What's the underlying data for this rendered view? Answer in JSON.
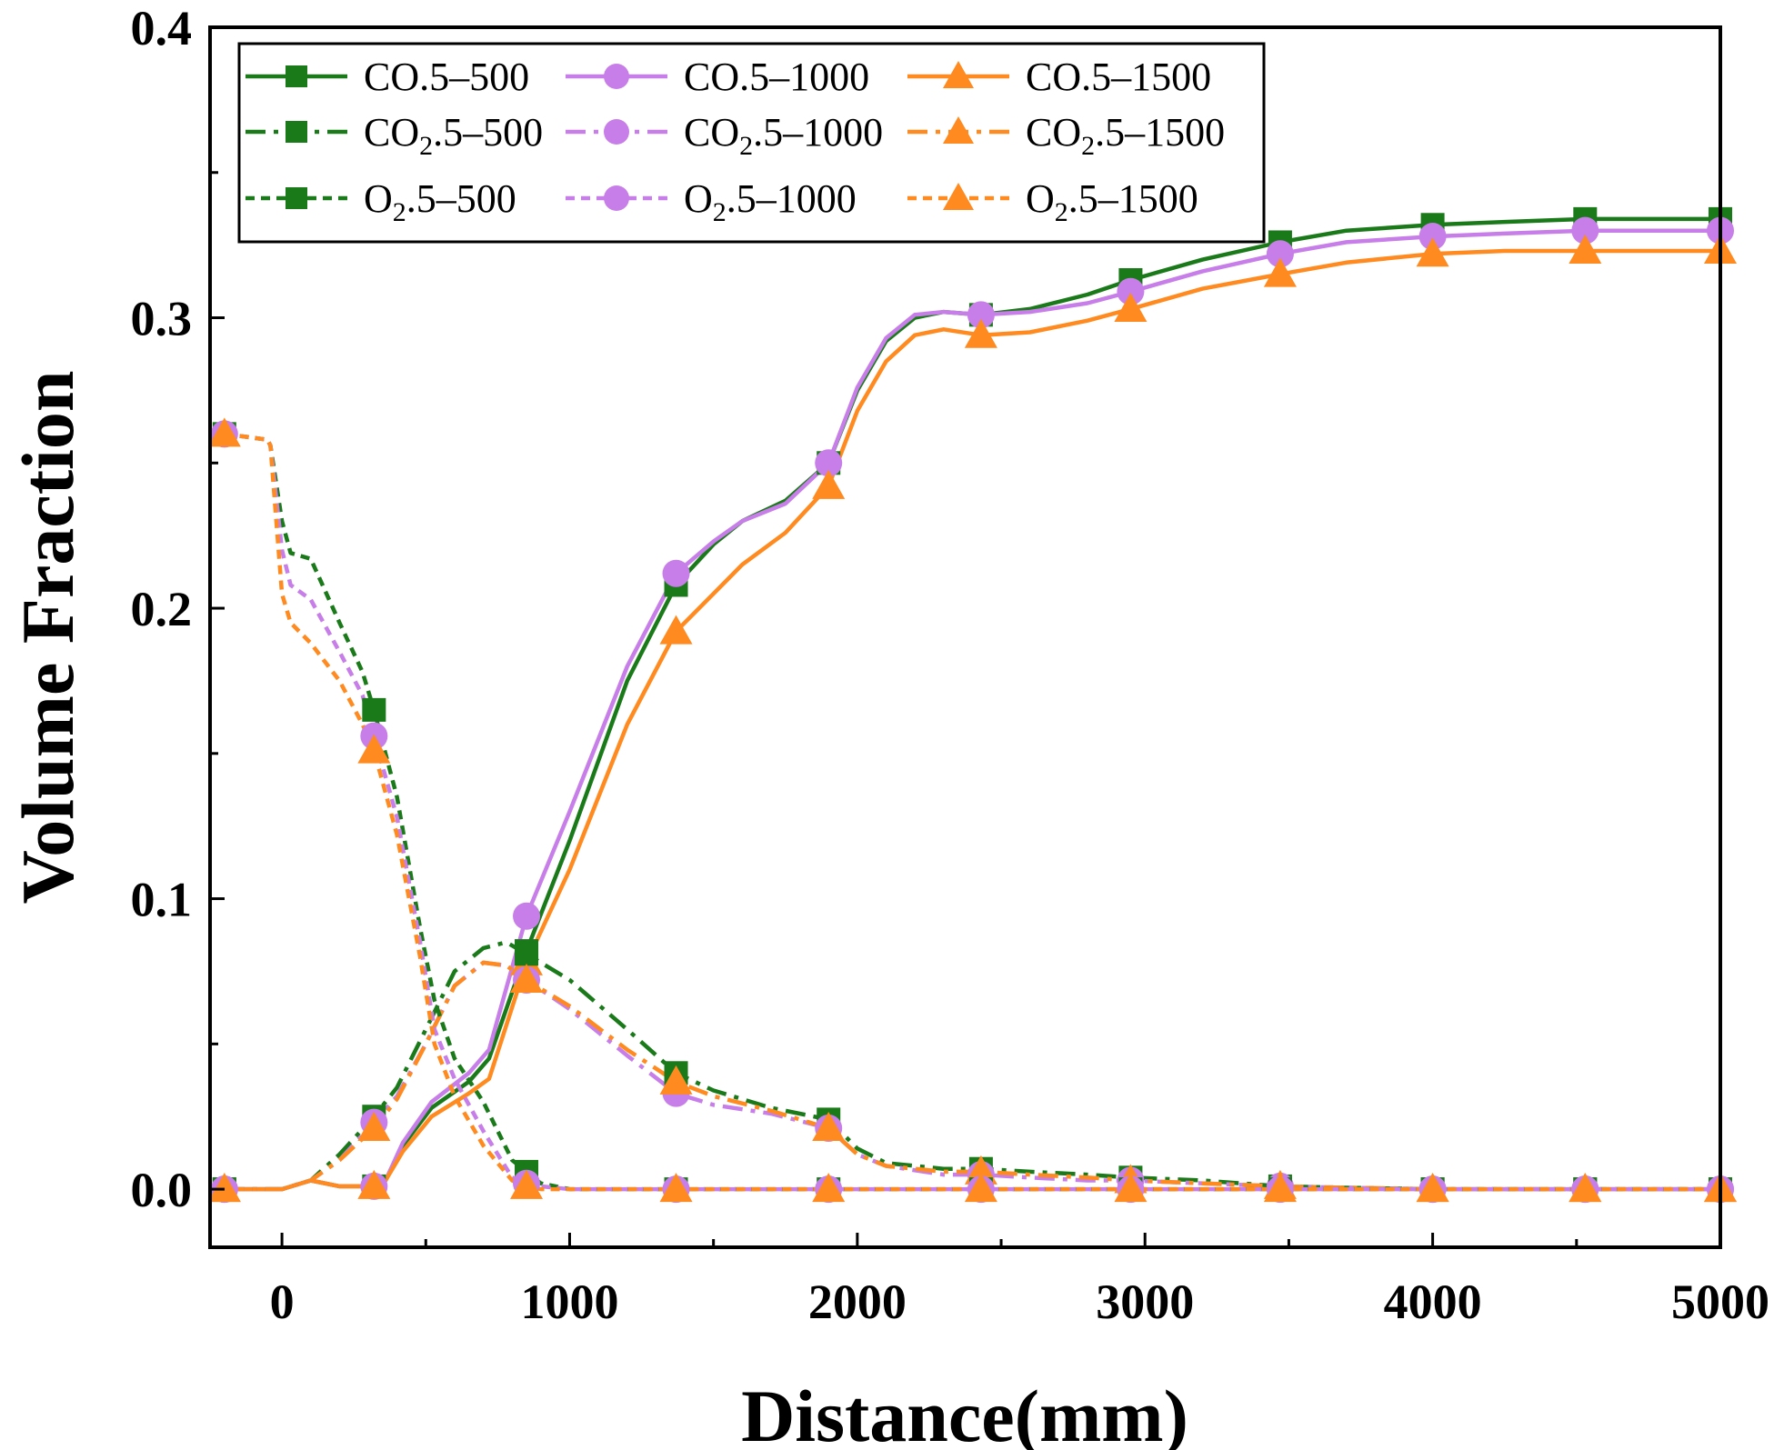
{
  "chart_data": {
    "type": "line",
    "title": "",
    "xlabel": "Distance(mm)",
    "ylabel": "Volume Fraction",
    "xlim": [
      -250,
      5000
    ],
    "ylim": [
      -0.02,
      0.4
    ],
    "xticks": [
      0,
      1000,
      2000,
      3000,
      4000,
      5000
    ],
    "xtick_labels": [
      "0",
      "1000",
      "2000",
      "3000",
      "4000",
      "5000"
    ],
    "yticks": [
      0.0,
      0.1,
      0.2,
      0.3,
      0.4
    ],
    "ytick_labels": [
      "0.0",
      "0.1",
      "0.2",
      "0.3",
      "0.4"
    ],
    "grid": false,
    "legend_position": "top-left",
    "colors": {
      "500": "#1a7a1a",
      "1000": "#c77ee8",
      "1500": "#ff8a1f"
    },
    "series": [
      {
        "name": "CO.5–500",
        "species": "CO",
        "subscript": "",
        "case": "5–500",
        "color_key": "500",
        "linestyle": "solid",
        "marker": "square",
        "points": [
          [
            -200,
            0
          ],
          [
            0,
            0
          ],
          [
            100,
            0.003
          ],
          [
            200,
            0.001
          ],
          [
            320,
            0.001
          ],
          [
            360,
            0.003
          ],
          [
            420,
            0.015
          ],
          [
            520,
            0.028
          ],
          [
            650,
            0.037
          ],
          [
            720,
            0.045
          ],
          [
            850,
            0.082
          ],
          [
            1000,
            0.12
          ],
          [
            1200,
            0.175
          ],
          [
            1370,
            0.208
          ],
          [
            1500,
            0.222
          ],
          [
            1600,
            0.23
          ],
          [
            1750,
            0.237
          ],
          [
            1900,
            0.25
          ],
          [
            2000,
            0.275
          ],
          [
            2100,
            0.292
          ],
          [
            2200,
            0.3
          ],
          [
            2300,
            0.302
          ],
          [
            2430,
            0.301
          ],
          [
            2600,
            0.303
          ],
          [
            2800,
            0.308
          ],
          [
            2950,
            0.313
          ],
          [
            3200,
            0.32
          ],
          [
            3470,
            0.326
          ],
          [
            3700,
            0.33
          ],
          [
            4000,
            0.332
          ],
          [
            4250,
            0.333
          ],
          [
            4530,
            0.334
          ],
          [
            4800,
            0.334
          ],
          [
            5000,
            0.334
          ]
        ],
        "marker_x": [
          -200,
          320,
          850,
          1370,
          1900,
          2430,
          2950,
          3470,
          4000,
          4530,
          5000
        ]
      },
      {
        "name": "CO.5–1000",
        "species": "CO",
        "subscript": "",
        "case": "5–1000",
        "color_key": "1000",
        "linestyle": "solid",
        "marker": "circle",
        "points": [
          [
            -200,
            0
          ],
          [
            0,
            0
          ],
          [
            100,
            0.003
          ],
          [
            200,
            0.001
          ],
          [
            320,
            0.001
          ],
          [
            360,
            0.003
          ],
          [
            420,
            0.016
          ],
          [
            520,
            0.03
          ],
          [
            650,
            0.04
          ],
          [
            720,
            0.048
          ],
          [
            850,
            0.094
          ],
          [
            1000,
            0.13
          ],
          [
            1200,
            0.18
          ],
          [
            1370,
            0.212
          ],
          [
            1500,
            0.223
          ],
          [
            1600,
            0.23
          ],
          [
            1750,
            0.236
          ],
          [
            1900,
            0.25
          ],
          [
            2000,
            0.276
          ],
          [
            2100,
            0.293
          ],
          [
            2200,
            0.301
          ],
          [
            2300,
            0.302
          ],
          [
            2430,
            0.301
          ],
          [
            2600,
            0.302
          ],
          [
            2800,
            0.305
          ],
          [
            2950,
            0.309
          ],
          [
            3200,
            0.316
          ],
          [
            3470,
            0.322
          ],
          [
            3700,
            0.326
          ],
          [
            4000,
            0.328
          ],
          [
            4250,
            0.329
          ],
          [
            4530,
            0.33
          ],
          [
            4800,
            0.33
          ],
          [
            5000,
            0.33
          ]
        ],
        "marker_x": [
          -200,
          320,
          850,
          1370,
          1900,
          2430,
          2950,
          3470,
          4000,
          4530,
          5000
        ]
      },
      {
        "name": "CO.5–1500",
        "species": "CO",
        "subscript": "",
        "case": "5–1500",
        "color_key": "1500",
        "linestyle": "solid",
        "marker": "triangle",
        "points": [
          [
            -200,
            0
          ],
          [
            0,
            0
          ],
          [
            100,
            0.003
          ],
          [
            200,
            0.001
          ],
          [
            320,
            0.001
          ],
          [
            360,
            0.003
          ],
          [
            420,
            0.013
          ],
          [
            520,
            0.025
          ],
          [
            650,
            0.033
          ],
          [
            720,
            0.038
          ],
          [
            850,
            0.078
          ],
          [
            1000,
            0.11
          ],
          [
            1200,
            0.16
          ],
          [
            1370,
            0.192
          ],
          [
            1500,
            0.205
          ],
          [
            1600,
            0.215
          ],
          [
            1750,
            0.226
          ],
          [
            1900,
            0.242
          ],
          [
            2000,
            0.268
          ],
          [
            2100,
            0.285
          ],
          [
            2200,
            0.294
          ],
          [
            2300,
            0.296
          ],
          [
            2430,
            0.294
          ],
          [
            2600,
            0.295
          ],
          [
            2800,
            0.299
          ],
          [
            2950,
            0.303
          ],
          [
            3200,
            0.31
          ],
          [
            3470,
            0.315
          ],
          [
            3700,
            0.319
          ],
          [
            4000,
            0.322
          ],
          [
            4250,
            0.323
          ],
          [
            4530,
            0.323
          ],
          [
            4800,
            0.323
          ],
          [
            5000,
            0.323
          ]
        ],
        "marker_x": [
          -200,
          320,
          850,
          1370,
          1900,
          2430,
          2950,
          3470,
          4000,
          4530,
          5000
        ]
      },
      {
        "name": "CO2.5–500",
        "species": "CO",
        "subscript": "2",
        "case": "5–500",
        "color_key": "500",
        "linestyle": "dashdot",
        "marker": "square",
        "points": [
          [
            -200,
            0
          ],
          [
            0,
            0
          ],
          [
            100,
            0.003
          ],
          [
            200,
            0.012
          ],
          [
            320,
            0.025
          ],
          [
            400,
            0.035
          ],
          [
            500,
            0.055
          ],
          [
            600,
            0.075
          ],
          [
            700,
            0.083
          ],
          [
            780,
            0.085
          ],
          [
            850,
            0.081
          ],
          [
            1000,
            0.072
          ],
          [
            1200,
            0.055
          ],
          [
            1370,
            0.04
          ],
          [
            1500,
            0.034
          ],
          [
            1700,
            0.028
          ],
          [
            1900,
            0.024
          ],
          [
            2000,
            0.014
          ],
          [
            2100,
            0.009
          ],
          [
            2300,
            0.007
          ],
          [
            2430,
            0.007
          ],
          [
            2600,
            0.006
          ],
          [
            2800,
            0.005
          ],
          [
            2950,
            0.004
          ],
          [
            3200,
            0.003
          ],
          [
            3470,
            0.001
          ],
          [
            3700,
            0.0005
          ],
          [
            4000,
            0
          ],
          [
            5000,
            0
          ]
        ],
        "marker_x": [
          -200,
          320,
          850,
          1370,
          1900,
          2430,
          2950,
          3470,
          4000,
          4530,
          5000
        ]
      },
      {
        "name": "CO2.5–1000",
        "species": "CO",
        "subscript": "2",
        "case": "5–1000",
        "color_key": "1000",
        "linestyle": "dashdot",
        "marker": "circle",
        "points": [
          [
            -200,
            0
          ],
          [
            0,
            0
          ],
          [
            100,
            0.003
          ],
          [
            200,
            0.01
          ],
          [
            320,
            0.023
          ],
          [
            400,
            0.032
          ],
          [
            500,
            0.05
          ],
          [
            600,
            0.07
          ],
          [
            700,
            0.078
          ],
          [
            780,
            0.077
          ],
          [
            850,
            0.072
          ],
          [
            1000,
            0.062
          ],
          [
            1200,
            0.046
          ],
          [
            1370,
            0.033
          ],
          [
            1500,
            0.029
          ],
          [
            1700,
            0.026
          ],
          [
            1900,
            0.021
          ],
          [
            2000,
            0.012
          ],
          [
            2100,
            0.008
          ],
          [
            2300,
            0.005
          ],
          [
            2430,
            0.005
          ],
          [
            2600,
            0.004
          ],
          [
            2800,
            0.003
          ],
          [
            2950,
            0.003
          ],
          [
            3200,
            0.002
          ],
          [
            3470,
            0.001
          ],
          [
            3700,
            0.0005
          ],
          [
            4000,
            0
          ],
          [
            5000,
            0
          ]
        ],
        "marker_x": [
          -200,
          320,
          850,
          1370,
          1900,
          2430,
          2950,
          3470,
          4000,
          4530,
          5000
        ]
      },
      {
        "name": "CO2.5–1500",
        "species": "CO",
        "subscript": "2",
        "case": "5–1500",
        "color_key": "1500",
        "linestyle": "dashdot",
        "marker": "triangle",
        "points": [
          [
            -200,
            0
          ],
          [
            0,
            0
          ],
          [
            100,
            0.003
          ],
          [
            200,
            0.01
          ],
          [
            320,
            0.021
          ],
          [
            400,
            0.031
          ],
          [
            500,
            0.05
          ],
          [
            600,
            0.07
          ],
          [
            700,
            0.078
          ],
          [
            780,
            0.077
          ],
          [
            850,
            0.072
          ],
          [
            1000,
            0.063
          ],
          [
            1200,
            0.048
          ],
          [
            1370,
            0.037
          ],
          [
            1500,
            0.032
          ],
          [
            1700,
            0.027
          ],
          [
            1900,
            0.021
          ],
          [
            2000,
            0.012
          ],
          [
            2100,
            0.008
          ],
          [
            2300,
            0.006
          ],
          [
            2430,
            0.006
          ],
          [
            2600,
            0.005
          ],
          [
            2800,
            0.004
          ],
          [
            2950,
            0.003
          ],
          [
            3200,
            0.002
          ],
          [
            3470,
            0.001
          ],
          [
            3700,
            0.0005
          ],
          [
            4000,
            0
          ],
          [
            5000,
            0
          ]
        ],
        "marker_x": [
          -200,
          320,
          850,
          1370,
          1900,
          2430,
          2950,
          3470,
          4000,
          4530,
          5000
        ]
      },
      {
        "name": "O2.5–500",
        "species": "O",
        "subscript": "2",
        "case": "5–500",
        "color_key": "500",
        "linestyle": "dashed",
        "marker": "square",
        "points": [
          [
            -200,
            0.26
          ],
          [
            -50,
            0.258
          ],
          [
            -40,
            0.256
          ],
          [
            0,
            0.23
          ],
          [
            30,
            0.219
          ],
          [
            100,
            0.217
          ],
          [
            200,
            0.195
          ],
          [
            280,
            0.178
          ],
          [
            320,
            0.165
          ],
          [
            400,
            0.135
          ],
          [
            480,
            0.09
          ],
          [
            530,
            0.065
          ],
          [
            600,
            0.045
          ],
          [
            700,
            0.03
          ],
          [
            800,
            0.01
          ],
          [
            850,
            0.006
          ],
          [
            900,
            0.002
          ],
          [
            1000,
            0
          ],
          [
            5000,
            0
          ]
        ],
        "marker_x": [
          -200,
          320,
          850,
          1370,
          1900,
          2430,
          2950,
          3470,
          4000,
          4530,
          5000
        ]
      },
      {
        "name": "O2.5–1000",
        "species": "O",
        "subscript": "2",
        "case": "5–1000",
        "color_key": "1000",
        "linestyle": "dashed",
        "marker": "circle",
        "points": [
          [
            -200,
            0.26
          ],
          [
            -50,
            0.258
          ],
          [
            -40,
            0.256
          ],
          [
            0,
            0.22
          ],
          [
            30,
            0.208
          ],
          [
            100,
            0.203
          ],
          [
            200,
            0.185
          ],
          [
            280,
            0.17
          ],
          [
            320,
            0.156
          ],
          [
            400,
            0.128
          ],
          [
            480,
            0.085
          ],
          [
            530,
            0.055
          ],
          [
            600,
            0.038
          ],
          [
            700,
            0.02
          ],
          [
            800,
            0.004
          ],
          [
            850,
            0.002
          ],
          [
            900,
            0.001
          ],
          [
            1000,
            0
          ],
          [
            5000,
            0
          ]
        ],
        "marker_x": [
          -200,
          320,
          850,
          1370,
          1900,
          2430,
          2950,
          3470,
          4000,
          4530,
          5000
        ]
      },
      {
        "name": "O2.5–1500",
        "species": "O",
        "subscript": "2",
        "case": "5–1500",
        "color_key": "1500",
        "linestyle": "dashed",
        "marker": "triangle",
        "points": [
          [
            -200,
            0.26
          ],
          [
            -50,
            0.258
          ],
          [
            -40,
            0.256
          ],
          [
            0,
            0.205
          ],
          [
            30,
            0.195
          ],
          [
            100,
            0.188
          ],
          [
            200,
            0.175
          ],
          [
            280,
            0.16
          ],
          [
            320,
            0.151
          ],
          [
            400,
            0.122
          ],
          [
            480,
            0.08
          ],
          [
            530,
            0.05
          ],
          [
            600,
            0.032
          ],
          [
            700,
            0.015
          ],
          [
            800,
            0.003
          ],
          [
            850,
            0.001
          ],
          [
            900,
            0
          ],
          [
            1000,
            0
          ],
          [
            5000,
            0
          ]
        ],
        "marker_x": [
          -200,
          320,
          850,
          1370,
          1900,
          2430,
          2950,
          3470,
          4000,
          4530,
          5000
        ]
      }
    ]
  }
}
